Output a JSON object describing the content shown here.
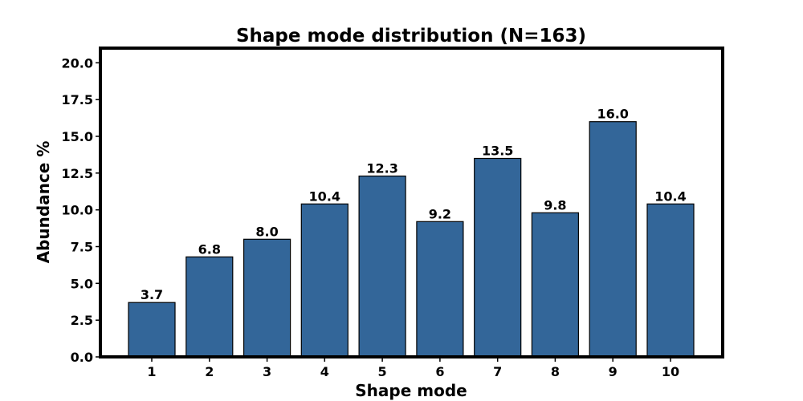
{
  "chart_data": {
    "type": "bar",
    "title": "Shape mode distribution (N=163)",
    "xlabel": "Shape mode",
    "ylabel": "Abundance %",
    "categories": [
      "1",
      "2",
      "3",
      "4",
      "5",
      "6",
      "7",
      "8",
      "9",
      "10"
    ],
    "values": [
      3.7,
      6.8,
      8.0,
      10.4,
      12.3,
      9.2,
      13.5,
      9.8,
      16.0,
      10.4
    ],
    "data_labels": [
      "3.7",
      "6.8",
      "8.0",
      "10.4",
      "12.3",
      "9.2",
      "13.5",
      "9.8",
      "16.0",
      "10.4"
    ],
    "ylim": [
      0,
      21
    ],
    "yticks": [
      0.0,
      2.5,
      5.0,
      7.5,
      10.0,
      12.5,
      15.0,
      17.5,
      20.0
    ],
    "ytick_labels": [
      "0.0",
      "2.5",
      "5.0",
      "7.5",
      "10.0",
      "12.5",
      "15.0",
      "17.5",
      "20.0"
    ],
    "grid": false,
    "legend": "none",
    "colors": {
      "bar_fill": "#336699",
      "bar_edge": "#000000",
      "axes": "#000000"
    }
  }
}
